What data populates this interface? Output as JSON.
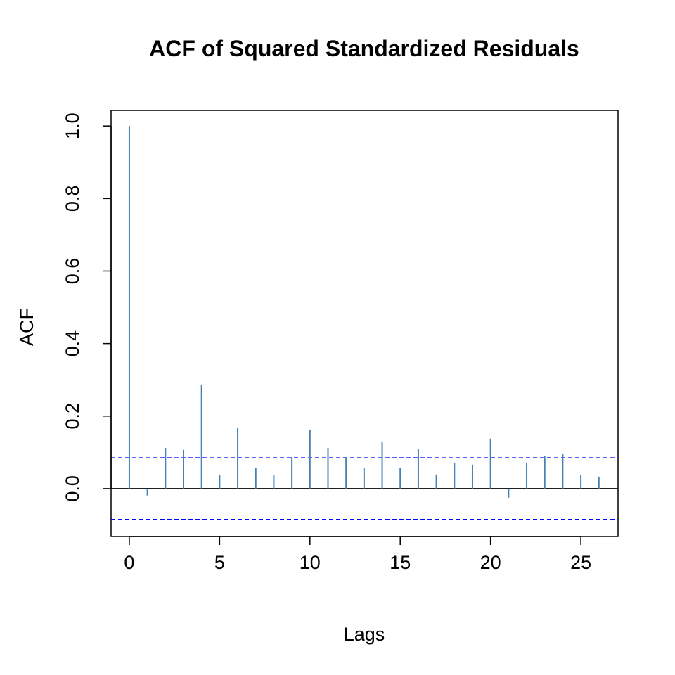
{
  "chart_data": {
    "type": "bar",
    "title": "ACF of Squared Standardized Residuals",
    "xlabel": "Lags",
    "ylabel": "ACF",
    "x": [
      0,
      1,
      2,
      3,
      4,
      5,
      6,
      7,
      8,
      9,
      10,
      11,
      12,
      13,
      14,
      15,
      16,
      17,
      18,
      19,
      20,
      21,
      22,
      23,
      24,
      25,
      26
    ],
    "values": [
      1.0,
      -0.019,
      0.112,
      0.107,
      0.287,
      0.037,
      0.167,
      0.058,
      0.037,
      0.087,
      0.163,
      0.112,
      0.087,
      0.058,
      0.13,
      0.058,
      0.109,
      0.039,
      0.072,
      0.066,
      0.138,
      -0.025,
      0.072,
      0.089,
      0.095,
      0.037,
      0.033
    ],
    "confidence_bounds": [
      0.085,
      -0.085
    ],
    "xlim": [
      -1.01,
      27.06
    ],
    "ylim": [
      -0.132,
      1.043
    ],
    "xticks": [
      0,
      5,
      10,
      15,
      20,
      25
    ],
    "xtick_labels": [
      "0",
      "5",
      "10",
      "15",
      "20",
      "25"
    ],
    "yticks": [
      0,
      0.2,
      0.4,
      0.6,
      0.8,
      1.0
    ],
    "ytick_labels": [
      "0.0",
      "0.2",
      "0.4",
      "0.6",
      "0.8",
      "1.0"
    ],
    "grid": false,
    "colors": {
      "bars": "#4682b4",
      "ci": "#0000ff",
      "zero": "#000000"
    }
  }
}
